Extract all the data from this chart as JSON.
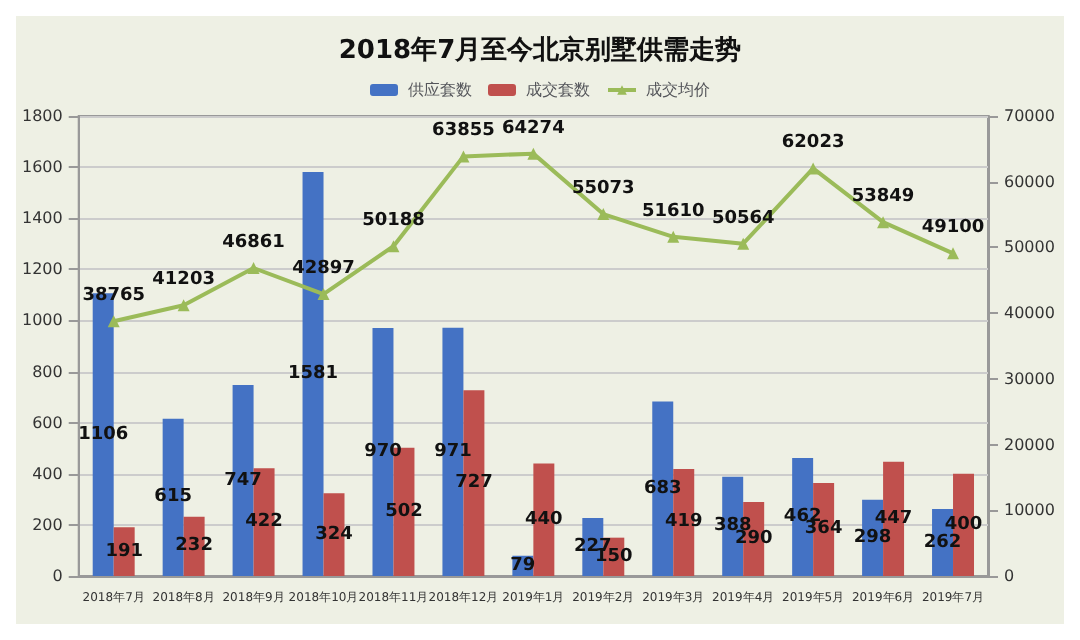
{
  "chart_data": {
    "type": "bar",
    "title": "2018年7月至今北京别墅供需走势",
    "categories": [
      "2018年7月",
      "2018年8月",
      "2018年9月",
      "2018年10月",
      "2018年11月",
      "2018年12月",
      "2019年1月",
      "2019年2月",
      "2019年3月",
      "2019年4月",
      "2019年5月",
      "2019年6月",
      "2019年7月"
    ],
    "series": [
      {
        "name": "供应套数",
        "color": "#4472c4",
        "values": [
          1106,
          615,
          747,
          1581,
          970,
          971,
          79,
          227,
          683,
          388,
          462,
          298,
          262
        ]
      },
      {
        "name": "成交套数",
        "color": "#c0504d",
        "values": [
          191,
          232,
          422,
          324,
          502,
          727,
          440,
          150,
          419,
          290,
          364,
          447,
          400
        ]
      },
      {
        "name": "成交均价",
        "type": "line",
        "axis": "y2",
        "color": "#9bbb59",
        "marker": "triangle",
        "values": [
          38765,
          41203,
          46861,
          42897,
          50188,
          63855,
          64274,
          55073,
          51610,
          50564,
          62023,
          53849,
          49100
        ]
      }
    ],
    "ylim": [
      0,
      1800
    ],
    "yticks": [
      0,
      200,
      400,
      600,
      800,
      1000,
      1200,
      1400,
      1600,
      1800
    ],
    "y2lim": [
      0,
      70000
    ],
    "y2ticks": [
      0,
      10000,
      20000,
      30000,
      40000,
      50000,
      60000,
      70000
    ],
    "grid": "y",
    "legend": "top",
    "data_labels": true
  }
}
